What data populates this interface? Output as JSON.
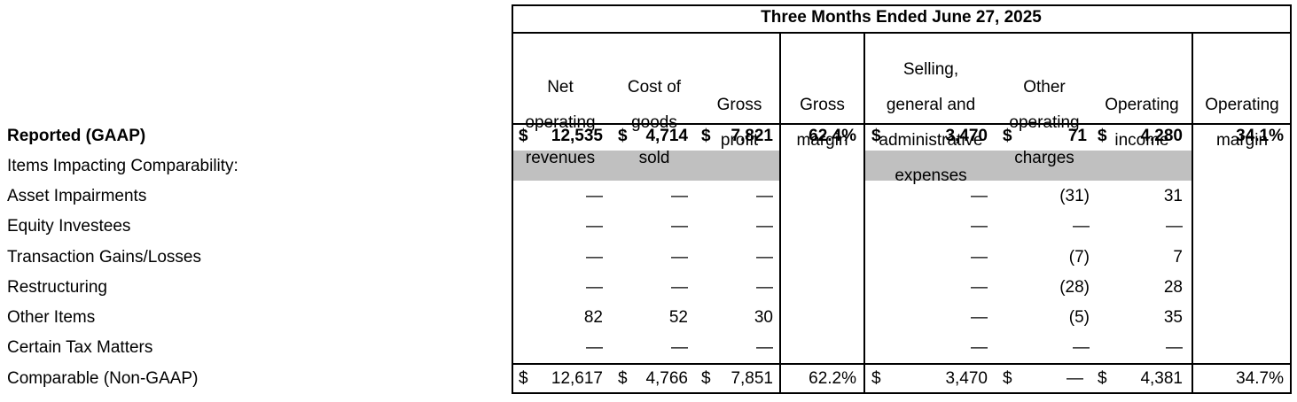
{
  "title": "Three Months Ended June 27, 2025",
  "columns": [
    {
      "key": "revenues",
      "label_lines": [
        "Net",
        "operating",
        "revenues"
      ]
    },
    {
      "key": "cogs",
      "label_lines": [
        "Cost of",
        "goods",
        "sold"
      ]
    },
    {
      "key": "gross_profit",
      "label_lines": [
        "Gross",
        "profit"
      ]
    },
    {
      "key": "gross_margin",
      "label_lines": [
        "Gross",
        "margin"
      ]
    },
    {
      "key": "sga",
      "label_lines": [
        "Selling,",
        "general and",
        "administrative",
        "expenses"
      ]
    },
    {
      "key": "other_charges",
      "label_lines": [
        "Other",
        "operating",
        "charges"
      ]
    },
    {
      "key": "operating_income",
      "label_lines": [
        "Operating",
        "income"
      ]
    },
    {
      "key": "operating_margin",
      "label_lines": [
        "Operating",
        "margin"
      ]
    }
  ],
  "rows": [
    {
      "label": "Reported (GAAP)",
      "bold": true,
      "revenues": "12,535",
      "cogs": "4,714",
      "gross_profit": "7,821",
      "gross_margin": "62.4%",
      "sga": "3,470",
      "other_charges": "71",
      "operating_income": "4,280",
      "operating_margin": "34.1%"
    },
    {
      "label": "Items Impacting Comparability:",
      "bold": false
    },
    {
      "label": "Asset Impairments",
      "bold": false,
      "revenues": "—",
      "cogs": "—",
      "gross_profit": "—",
      "sga": "—",
      "other_charges": "(31)",
      "operating_income": "31"
    },
    {
      "label": "Equity Investees",
      "bold": false,
      "revenues": "—",
      "cogs": "—",
      "gross_profit": "—",
      "sga": "—",
      "other_charges": "—",
      "operating_income": "—"
    },
    {
      "label": "Transaction Gains/Losses",
      "bold": false,
      "revenues": "—",
      "cogs": "—",
      "gross_profit": "—",
      "sga": "—",
      "other_charges": "(7)",
      "operating_income": "7"
    },
    {
      "label": "Restructuring",
      "bold": false,
      "revenues": "—",
      "cogs": "—",
      "gross_profit": "—",
      "sga": "—",
      "other_charges": "(28)",
      "operating_income": "28"
    },
    {
      "label": "Other Items",
      "bold": false,
      "revenues": "82",
      "cogs": "52",
      "gross_profit": "30",
      "sga": "—",
      "other_charges": "(5)",
      "operating_income": "35"
    },
    {
      "label": "Certain Tax Matters",
      "bold": false,
      "revenues": "—",
      "cogs": "—",
      "gross_profit": "—",
      "sga": "—",
      "other_charges": "—",
      "operating_income": "—"
    },
    {
      "label": "Comparable (Non-GAAP)",
      "bold": false,
      "revenues": "12,617",
      "cogs": "4,766",
      "gross_profit": "7,851",
      "gross_margin": "62.2%",
      "sga": "3,470",
      "other_charges": "—",
      "operating_income": "4,381",
      "operating_margin": "34.7%"
    }
  ],
  "currency_symbol": "$",
  "colors": {
    "shade": "#c0c0c0",
    "text": "#000000",
    "border": "#000000"
  }
}
